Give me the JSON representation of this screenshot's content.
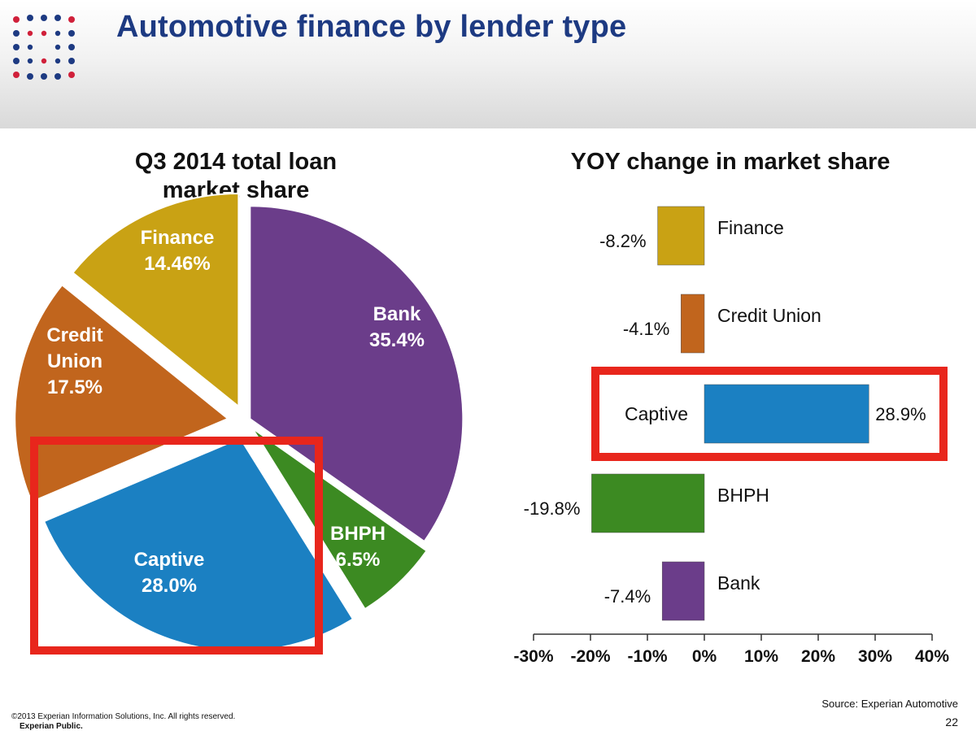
{
  "header": {
    "title": "Automotive finance by lender type"
  },
  "colors": {
    "title": "#1d3a82",
    "finance": "#c9a214",
    "credit_union": "#c1651d",
    "captive": "#1b80c2",
    "bhph": "#3c8a22",
    "bank": "#6b3d8a",
    "highlight": "#e8261c",
    "logo_blue": "#1d3a82",
    "logo_red": "#d0203a"
  },
  "chart_data": [
    {
      "type": "pie",
      "title": "Q3 2014 total loan market share",
      "title_lines": [
        "Q3 2014 total loan",
        "market share"
      ],
      "slices": [
        {
          "key": "bank",
          "label_lines": [
            "Bank"
          ],
          "value": 35.4,
          "value_label": "35.4%",
          "color": "#6b3d8a"
        },
        {
          "key": "bhph",
          "label_lines": [
            "BHPH"
          ],
          "value": 6.5,
          "value_label": "6.5%",
          "color": "#3c8a22"
        },
        {
          "key": "captive",
          "label_lines": [
            "Captive"
          ],
          "value": 28.0,
          "value_label": "28.0%",
          "color": "#1b80c2"
        },
        {
          "key": "credit_union",
          "label_lines": [
            "Credit",
            "Union"
          ],
          "value": 17.5,
          "value_label": "17.5%",
          "color": "#c1651d"
        },
        {
          "key": "finance",
          "label_lines": [
            "Finance"
          ],
          "value": 14.46,
          "value_label": "14.46%",
          "color": "#c9a214"
        }
      ],
      "highlighted": "captive"
    },
    {
      "type": "bar",
      "orientation": "horizontal",
      "title": "YOY change in market share",
      "categories": [
        "Finance",
        "Credit Union",
        "Captive",
        "BHPH",
        "Bank"
      ],
      "values": [
        -8.2,
        -4.1,
        28.9,
        -19.8,
        -7.4
      ],
      "value_labels": [
        "-8.2%",
        "-4.1%",
        "28.9%",
        "-19.8%",
        "-7.4%"
      ],
      "colors": [
        "#c9a214",
        "#c1651d",
        "#1b80c2",
        "#3c8a22",
        "#6b3d8a"
      ],
      "xlim": [
        -30,
        40
      ],
      "x_ticks": [
        -30,
        -20,
        -10,
        0,
        10,
        20,
        30,
        40
      ],
      "x_tick_labels": [
        "-30%",
        "-20%",
        "-10%",
        "0%",
        "10%",
        "20%",
        "30%",
        "40%"
      ],
      "grid": false,
      "highlighted": "Captive"
    }
  ],
  "footer": {
    "copyright": "©2013 Experian Information Solutions, Inc. All rights reserved.",
    "classification": "Experian Public.",
    "source": "Source: Experian Automotive",
    "page_number": "22"
  }
}
